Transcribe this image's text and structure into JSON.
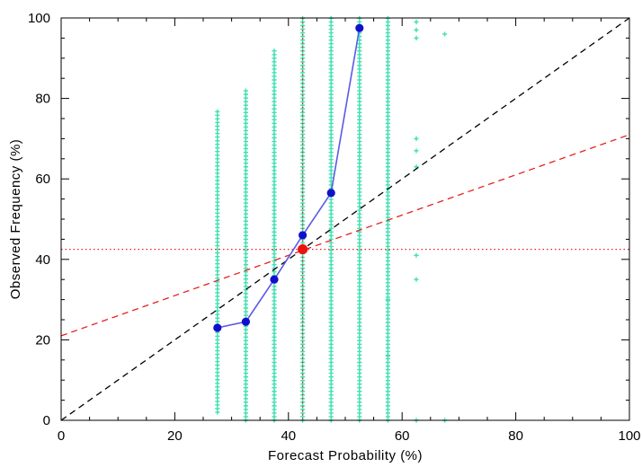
{
  "chart_data": {
    "type": "scatter",
    "title": "",
    "xlabel": "Forecast Probability (%)",
    "ylabel": "Observed Frequency (%)",
    "xlim": [
      0,
      100
    ],
    "ylim": [
      0,
      100
    ],
    "x_ticks": [
      0,
      20,
      40,
      60,
      80,
      100
    ],
    "y_ticks": [
      0,
      20,
      40,
      60,
      80,
      100
    ],
    "grid": false,
    "legend": "none",
    "colors": {
      "scatter": "#40e0b0",
      "reliability_line": "#5a5ae6",
      "reliability_points": "#1010cc",
      "climatology_line": "#e82020",
      "mean_point": "#ee1111",
      "diagonal": "#000000"
    },
    "scatter_columns": [
      {
        "x": 27.5,
        "ymin": 2,
        "ymax": 77
      },
      {
        "x": 32.5,
        "ymin": 0,
        "ymax": 82
      },
      {
        "x": 37.5,
        "ymin": 0,
        "ymax": 92
      },
      {
        "x": 42.5,
        "ymin": 0,
        "ymax": 100
      },
      {
        "x": 47.5,
        "ymin": 0,
        "ymax": 100
      },
      {
        "x": 52.5,
        "ymin": 0,
        "ymax": 100
      },
      {
        "x": 57.5,
        "ymin": 0,
        "ymax": 100
      }
    ],
    "scatter_extra_points": [
      {
        "x": 57.5,
        "y": 16
      },
      {
        "x": 57.5,
        "y": 9
      },
      {
        "x": 57.5,
        "y": 30
      },
      {
        "x": 62.5,
        "y": 99
      },
      {
        "x": 62.5,
        "y": 97
      },
      {
        "x": 62.5,
        "y": 95
      },
      {
        "x": 62.5,
        "y": 70
      },
      {
        "x": 62.5,
        "y": 67
      },
      {
        "x": 62.5,
        "y": 63
      },
      {
        "x": 62.5,
        "y": 41
      },
      {
        "x": 62.5,
        "y": 35
      },
      {
        "x": 62.5,
        "y": 0
      },
      {
        "x": 67.5,
        "y": 96
      },
      {
        "x": 67.5,
        "y": 0
      }
    ],
    "reliability_curve": {
      "x": [
        27.5,
        32.5,
        37.5,
        42.5,
        47.5,
        52.5
      ],
      "y": [
        23,
        24.5,
        35,
        46,
        56.5,
        97.5
      ]
    },
    "mean_point": {
      "x": 42.5,
      "y": 42.5
    },
    "diagonal": {
      "x": [
        0,
        100
      ],
      "y": [
        0,
        100
      ]
    },
    "skill_line": {
      "x": [
        0,
        100
      ],
      "y": [
        21,
        71
      ]
    },
    "climatology_hline": 42.5,
    "climatology_vline": 42.5
  }
}
